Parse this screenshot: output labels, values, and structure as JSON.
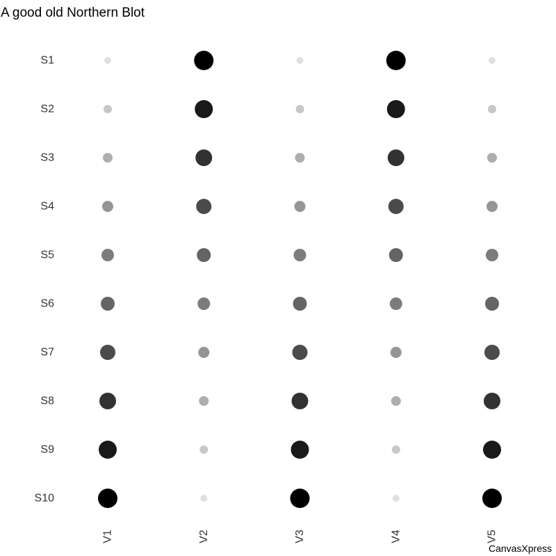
{
  "chart_data": {
    "type": "dotplot",
    "title": "A good old Northern Blot",
    "rows": [
      "S1",
      "S2",
      "S3",
      "S4",
      "S5",
      "S6",
      "S7",
      "S8",
      "S9",
      "S10"
    ],
    "columns": [
      "V1",
      "V2",
      "V3",
      "V4",
      "V5"
    ],
    "values": [
      [
        1,
        10,
        1,
        10,
        1
      ],
      [
        2,
        9,
        2,
        9,
        2
      ],
      [
        3,
        8,
        3,
        8,
        3
      ],
      [
        4,
        7,
        4,
        7,
        4
      ],
      [
        5,
        6,
        5,
        6,
        5
      ],
      [
        6,
        5,
        6,
        5,
        6
      ],
      [
        7,
        4,
        7,
        4,
        7
      ],
      [
        8,
        3,
        8,
        3,
        8
      ],
      [
        9,
        2,
        9,
        2,
        9
      ],
      [
        10,
        1,
        10,
        1,
        10
      ]
    ],
    "value_range": [
      1,
      10
    ],
    "color_low": "#e0e0e0",
    "color_high": "#000000",
    "grid": false,
    "legend": "none"
  },
  "watermark": "CanvasXpress"
}
